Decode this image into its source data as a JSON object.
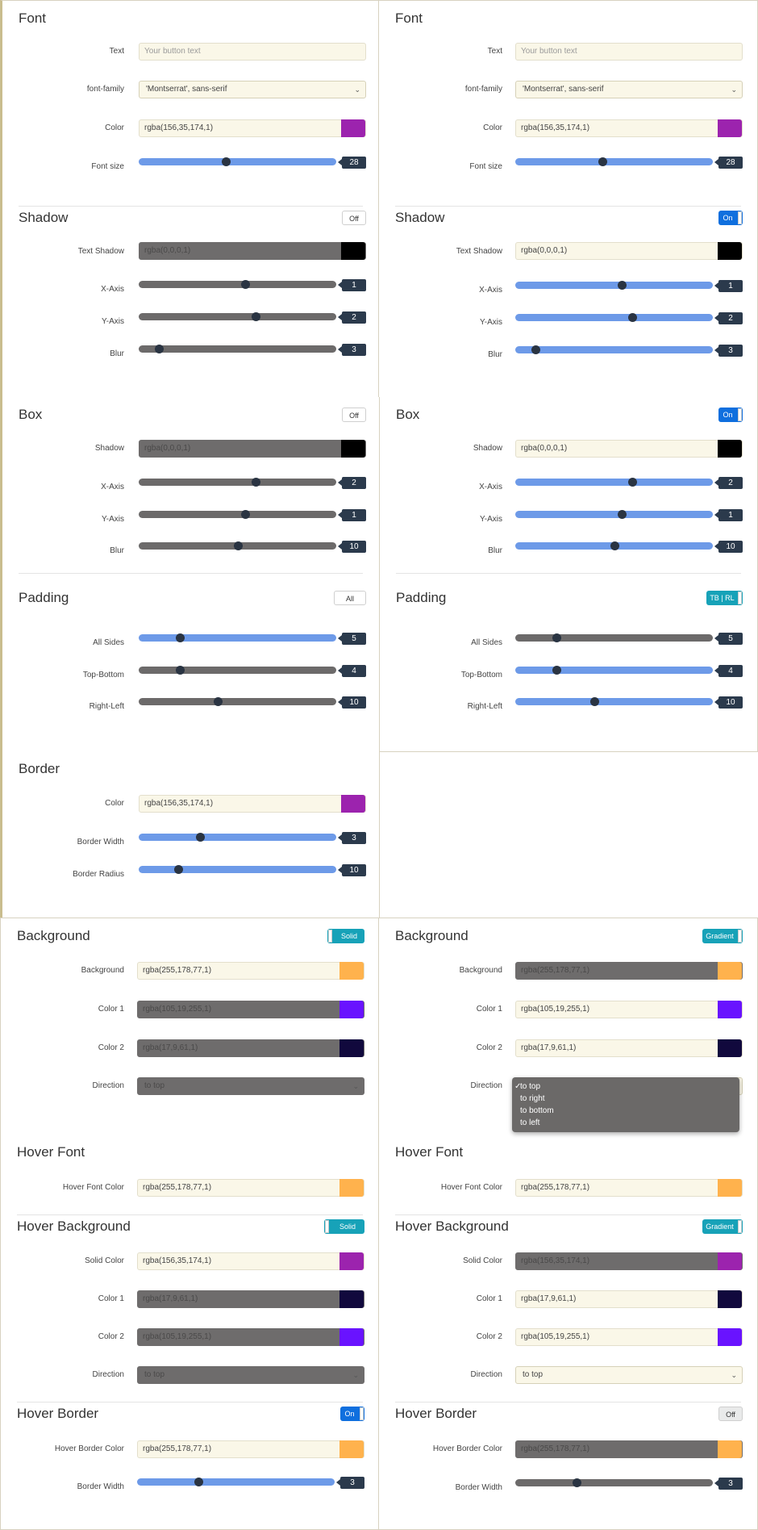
{
  "font": {
    "title": "Font",
    "text_label": "Text",
    "text_placeholder": "Your button text",
    "family_label": "font-family",
    "family_value": "'Montserrat', sans-serif",
    "color_label": "Color",
    "color_value": "rgba(156,35,174,1)",
    "size_label": "Font size",
    "size_value": "28",
    "size_fraction": 0.44
  },
  "shadow": {
    "title": "Shadow",
    "toggle_left": "Off",
    "toggle_right": "On",
    "text_shadow_label": "Text Shadow",
    "text_shadow_value": "rgba(0,0,0,1)",
    "x_label": "X-Axis",
    "x_value": "1",
    "y_label": "Y-Axis",
    "y_value": "2",
    "blur_label": "Blur",
    "blur_value": "3"
  },
  "box": {
    "title": "Box",
    "toggle_left": "Off",
    "toggle_right": "On",
    "shadow_label": "Shadow",
    "shadow_value": "rgba(0,0,0,1)",
    "x_label": "X-Axis",
    "x_value": "2",
    "y_label": "Y-Axis",
    "y_value": "1",
    "blur_label": "Blur",
    "blur_value": "10"
  },
  "padding": {
    "title": "Padding",
    "toggle_left": "All",
    "toggle_right": "TB | RL",
    "all_label": "All Sides",
    "all_value": "5",
    "tb_label": "Top-Bottom",
    "tb_value": "4",
    "rl_label": "Right-Left",
    "rl_value": "10"
  },
  "border": {
    "title": "Border",
    "color_label": "Color",
    "color_value": "rgba(156,35,174,1)",
    "width_label": "Border Width",
    "width_value": "3",
    "radius_label": "Border Radius",
    "radius_value": "10"
  },
  "background": {
    "title": "Background",
    "toggle_left": "Solid",
    "toggle_right": "Gradient",
    "bg_label": "Background",
    "bg_value": "rgba(255,178,77,1)",
    "c1_label": "Color 1",
    "c1_value": "rgba(105,19,255,1)",
    "c2_label": "Color 2",
    "c2_value": "rgba(17,9,61,1)",
    "dir_label": "Direction",
    "dir_value": "to top",
    "dir_options": [
      "to top",
      "to right",
      "to bottom",
      "to left"
    ],
    "check": "✓"
  },
  "hover_font": {
    "title": "Hover Font",
    "color_label": "Hover Font Color",
    "color_value": "rgba(255,178,77,1)"
  },
  "hover_bg": {
    "title": "Hover Background",
    "toggle_left": "Solid",
    "toggle_right": "Gradient",
    "solid_label": "Solid Color",
    "solid_value": "rgba(156,35,174,1)",
    "c1_label": "Color 1",
    "c1_value": "rgba(17,9,61,1)",
    "c2_label": "Color 2",
    "c2_value": "rgba(105,19,255,1)",
    "dir_label": "Direction",
    "dir_value": "to top"
  },
  "hover_border": {
    "title": "Hover Border",
    "toggle_left": "On",
    "toggle_right": "Off",
    "color_label": "Hover Border Color",
    "color_value": "rgba(255,178,77,1)",
    "width_label": "Border Width",
    "width_value": "3"
  },
  "colors": {
    "purple": "#9c23ae",
    "black": "#000000",
    "orange": "#ffb24d",
    "violet": "#6913ff",
    "navy": "#11093d",
    "slider_blue": "#6d9ae8",
    "toggle_blue": "#0f6fde",
    "teal": "#17a2b8"
  }
}
